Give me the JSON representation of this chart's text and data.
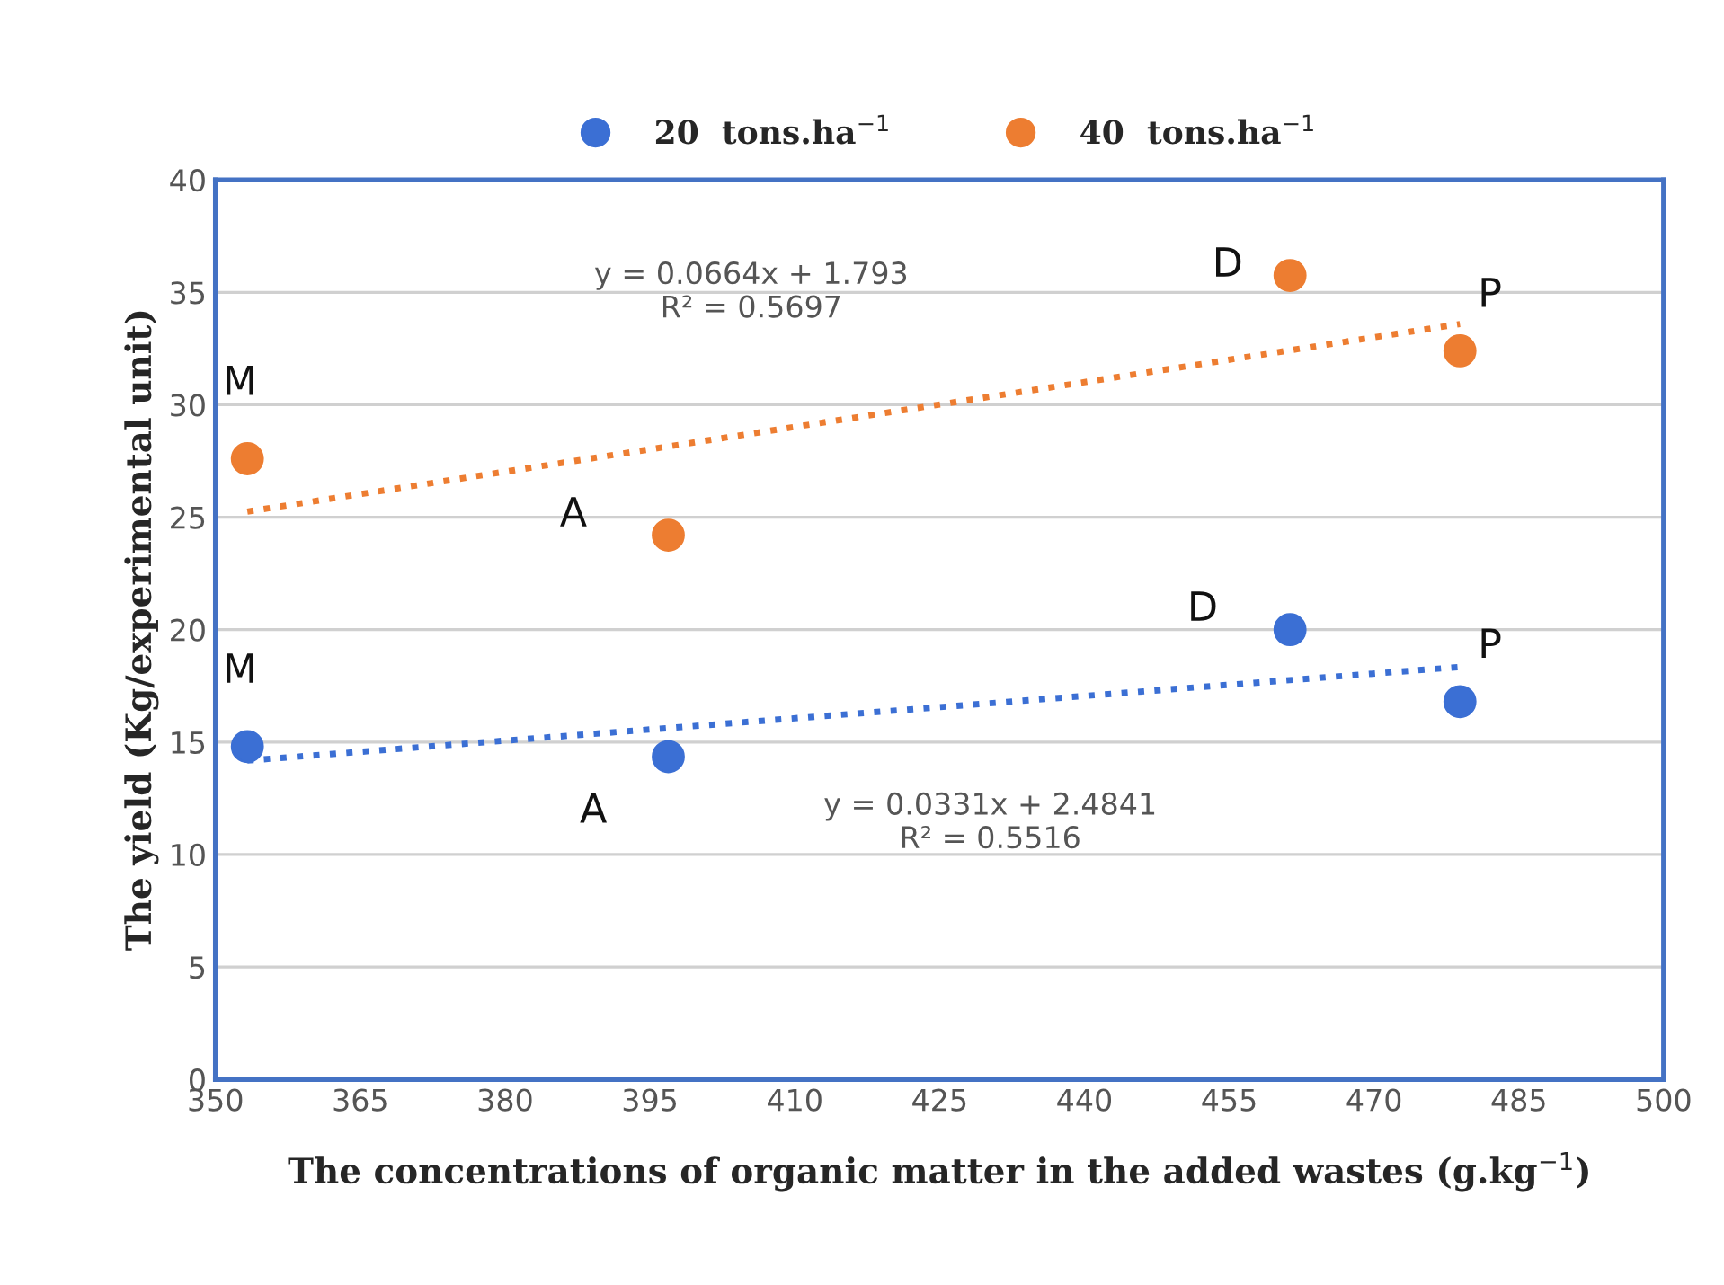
{
  "chart_data": {
    "type": "scatter",
    "xlabel": "The concentrations of organic matter in the added wastes (g.kg$^{−1}$)",
    "ylabel": "The yield (Kg/experimental unit)",
    "xlim": [
      350,
      500
    ],
    "xticks": [
      350,
      365,
      380,
      395,
      410,
      425,
      440,
      455,
      470,
      485,
      500
    ],
    "ylim": [
      0,
      40
    ],
    "yticks": [
      0,
      5,
      10,
      15,
      20,
      25,
      30,
      35,
      40
    ],
    "grid": "y",
    "legend": "top",
    "marker": "circle",
    "series": [
      {
        "name": "20  tons.ha$^{−1}$",
        "color": "#3b6fd4",
        "x": [
          353.3,
          396.9,
          461.3,
          478.9
        ],
        "values": [
          14.8,
          14.35,
          20.0,
          16.8
        ]
      },
      {
        "name": "40  tons.ha$^{−1}$",
        "color": "#ed7d31",
        "x": [
          353.3,
          396.9,
          461.3,
          478.9
        ],
        "values": [
          27.6,
          24.2,
          35.75,
          32.4
        ]
      },
      {
        "type": "line",
        "marker": "none",
        "line_style": "dotted",
        "color": "#3b6fd4",
        "x": [
          353.3,
          478.9
        ],
        "values": [
          14.18,
          18.34
        ]
      },
      {
        "type": "line",
        "marker": "none",
        "line_style": "dotted",
        "color": "#ed7d31",
        "x": [
          353.3,
          478.9
        ],
        "values": [
          25.25,
          33.59
        ]
      }
    ],
    "annotations": [
      {
        "text": "M",
        "x": 353.3,
        "y": 14.8
      },
      {
        "text": "A",
        "x": 396.9,
        "y": 14.35
      },
      {
        "text": "D",
        "x": 461.3,
        "y": 20.0
      },
      {
        "text": "P",
        "x": 478.9,
        "y": 16.8
      },
      {
        "text": "M",
        "x": 353.3,
        "y": 27.6
      },
      {
        "text": "A",
        "x": 396.9,
        "y": 24.2
      },
      {
        "text": "D",
        "x": 461.3,
        "y": 35.75
      },
      {
        "text": "P",
        "x": 478.9,
        "y": 32.4
      },
      "y = 0.0331x + 2.4841\nR² = 0.5516",
      "y = 0.0664x + 1.793\nR² = 0.5697"
    ]
  }
}
